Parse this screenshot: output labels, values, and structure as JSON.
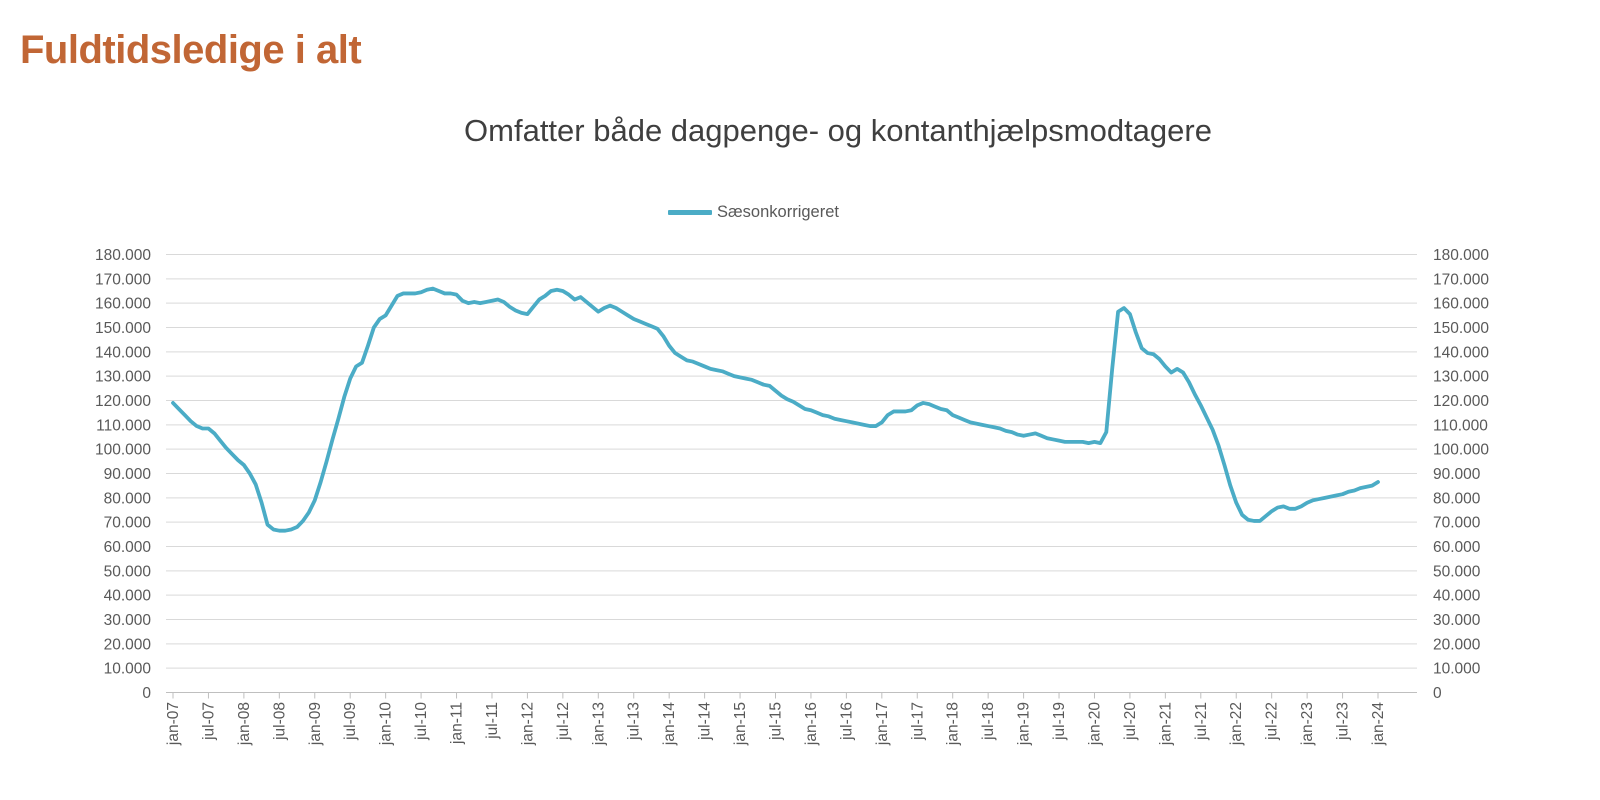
{
  "title": "Fuldtidsledige i alt",
  "chart": {
    "subtitle": "Omfatter både dagpenge- og kontanthjælpsmodtagere",
    "legend_label": "Sæsonkorrigeret"
  },
  "colors": {
    "title": "#C16635",
    "subtitle_text": "#3F3F3F",
    "legend_text": "#595959",
    "line": "#4BACC6",
    "gridline": "#D9D9D9",
    "axis": "#BFBFBF",
    "axis_label": "#595959",
    "background": "#FFFFFF"
  },
  "chart_data": {
    "type": "line",
    "title": "Omfatter både dagpenge- og kontanthjælpsmodtagere",
    "legend": [
      "Sæsonkorrigeret"
    ],
    "legend_position": "top-center",
    "grid": "horizontal",
    "y_axis_sides": "both",
    "ylim": [
      0,
      180000
    ],
    "y_tick_step": 10000,
    "y_tick_labels": [
      "0",
      "10.000",
      "20.000",
      "30.000",
      "40.000",
      "50.000",
      "60.000",
      "70.000",
      "80.000",
      "90.000",
      "100.000",
      "110.000",
      "120.000",
      "130.000",
      "140.000",
      "150.000",
      "160.000",
      "170.000",
      "180.000"
    ],
    "x_label_rotation": -90,
    "months_per_tick": 6,
    "x_tick_labels": [
      "jan-07",
      "jul-07",
      "jan-08",
      "jul-08",
      "jan-09",
      "jul-09",
      "jan-10",
      "jul-10",
      "jan-11",
      "jul-11",
      "jan-12",
      "jul-12",
      "jan-13",
      "jul-13",
      "jan-14",
      "jul-14",
      "jan-15",
      "jul-15",
      "jan-16",
      "jul-16",
      "jan-17",
      "jul-17",
      "jan-18",
      "jul-18",
      "jan-19",
      "jul-19",
      "jan-20",
      "jul-20",
      "jan-21",
      "jul-21",
      "jan-22",
      "jul-22",
      "jan-23",
      "jul-23",
      "jan-24"
    ],
    "series": [
      {
        "name": "Sæsonkorrigeret",
        "color": "#4BACC6",
        "x_start": "jan-07",
        "x_interval": "month",
        "values": [
          119000,
          116500,
          114000,
          111500,
          109500,
          108500,
          108500,
          106500,
          103500,
          100500,
          98000,
          95500,
          93500,
          90000,
          85500,
          78000,
          69000,
          67000,
          66500,
          66500,
          67000,
          68000,
          70500,
          74000,
          79000,
          86500,
          95000,
          104000,
          112500,
          121500,
          129000,
          134000,
          135500,
          142500,
          150000,
          153500,
          155000,
          159000,
          163000,
          164000,
          164000,
          164000,
          164500,
          165500,
          166000,
          165000,
          164000,
          164000,
          163500,
          161000,
          160000,
          160500,
          160000,
          160500,
          161000,
          161500,
          160500,
          158500,
          157000,
          156000,
          155500,
          158500,
          161500,
          163000,
          165000,
          165500,
          165000,
          163500,
          161500,
          162500,
          160500,
          158500,
          156500,
          158000,
          159000,
          158000,
          156500,
          155000,
          153500,
          152500,
          151500,
          150500,
          149500,
          146500,
          142500,
          139500,
          138000,
          136500,
          136000,
          135000,
          134000,
          133000,
          132500,
          132000,
          131000,
          130000,
          129500,
          129000,
          128500,
          127500,
          126500,
          126000,
          124000,
          122000,
          120500,
          119500,
          118000,
          116500,
          116000,
          115000,
          114000,
          113500,
          112500,
          112000,
          111500,
          111000,
          110500,
          110000,
          109500,
          109500,
          111000,
          114000,
          115500,
          115500,
          115500,
          116000,
          118000,
          119000,
          118500,
          117500,
          116500,
          116000,
          114000,
          113000,
          112000,
          111000,
          110500,
          110000,
          109500,
          109000,
          108500,
          107500,
          107000,
          106000,
          105500,
          106000,
          106500,
          105500,
          104500,
          104000,
          103500,
          103000,
          103000,
          103000,
          103000,
          102500,
          103000,
          102500,
          107000,
          133000,
          156500,
          158000,
          155500,
          148000,
          141500,
          139500,
          139000,
          137000,
          134000,
          131500,
          133000,
          131500,
          127500,
          122500,
          118000,
          113000,
          108000,
          101500,
          93500,
          85000,
          78000,
          73000,
          71000,
          70500,
          70500,
          72500,
          74500,
          76000,
          76500,
          75500,
          75500,
          76500,
          78000,
          79000,
          79500,
          80000,
          80500,
          81000,
          81500,
          82500,
          83000,
          84000,
          84500,
          85000,
          86500
        ]
      }
    ]
  }
}
